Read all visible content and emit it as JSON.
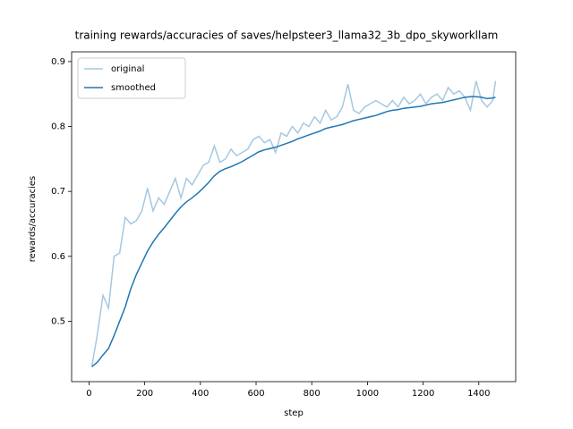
{
  "chart_data": {
    "type": "line",
    "title": "training rewards/accuracies of saves/helpsteer3_llama32_3b_dpo_skyworkllam",
    "xlabel": "step",
    "ylabel": "rewards/accuracies",
    "x": [
      10,
      30,
      50,
      70,
      90,
      110,
      130,
      150,
      170,
      190,
      210,
      230,
      250,
      270,
      290,
      310,
      330,
      350,
      370,
      390,
      410,
      430,
      450,
      470,
      490,
      510,
      530,
      550,
      570,
      590,
      610,
      630,
      650,
      670,
      690,
      710,
      730,
      750,
      770,
      790,
      810,
      830,
      850,
      870,
      890,
      910,
      930,
      950,
      970,
      990,
      1010,
      1030,
      1050,
      1070,
      1090,
      1110,
      1130,
      1150,
      1170,
      1190,
      1210,
      1230,
      1250,
      1270,
      1290,
      1310,
      1330,
      1350,
      1370,
      1390,
      1410,
      1430,
      1450,
      1460
    ],
    "series": [
      {
        "name": "original",
        "color": "#a5c8e1",
        "values": [
          0.43,
          0.48,
          0.54,
          0.52,
          0.6,
          0.605,
          0.66,
          0.65,
          0.655,
          0.67,
          0.705,
          0.67,
          0.69,
          0.68,
          0.7,
          0.72,
          0.69,
          0.72,
          0.71,
          0.725,
          0.74,
          0.745,
          0.77,
          0.745,
          0.75,
          0.765,
          0.755,
          0.76,
          0.765,
          0.78,
          0.785,
          0.775,
          0.78,
          0.76,
          0.79,
          0.785,
          0.8,
          0.79,
          0.805,
          0.8,
          0.815,
          0.805,
          0.825,
          0.81,
          0.815,
          0.83,
          0.865,
          0.825,
          0.82,
          0.83,
          0.835,
          0.84,
          0.835,
          0.83,
          0.84,
          0.83,
          0.845,
          0.835,
          0.84,
          0.85,
          0.835,
          0.845,
          0.85,
          0.84,
          0.86,
          0.85,
          0.855,
          0.845,
          0.825,
          0.87,
          0.84,
          0.83,
          0.84,
          0.87
        ]
      },
      {
        "name": "smoothed",
        "color": "#1f77b4",
        "values": [
          0.43,
          0.437,
          0.448,
          0.458,
          0.478,
          0.5,
          0.522,
          0.55,
          0.572,
          0.59,
          0.608,
          0.622,
          0.634,
          0.644,
          0.655,
          0.666,
          0.676,
          0.684,
          0.69,
          0.697,
          0.705,
          0.714,
          0.724,
          0.731,
          0.735,
          0.738,
          0.742,
          0.746,
          0.751,
          0.756,
          0.761,
          0.764,
          0.766,
          0.768,
          0.771,
          0.774,
          0.777,
          0.781,
          0.784,
          0.787,
          0.79,
          0.793,
          0.797,
          0.799,
          0.801,
          0.803,
          0.806,
          0.809,
          0.811,
          0.813,
          0.815,
          0.817,
          0.82,
          0.823,
          0.825,
          0.826,
          0.828,
          0.829,
          0.83,
          0.831,
          0.833,
          0.835,
          0.836,
          0.837,
          0.839,
          0.841,
          0.843,
          0.845,
          0.846,
          0.846,
          0.845,
          0.843,
          0.844,
          0.845
        ]
      }
    ],
    "xlim": [
      -62.5,
      1532.5
    ],
    "xticks": [
      0,
      200,
      400,
      600,
      800,
      1000,
      1200,
      1400
    ],
    "ylim": [
      0.407,
      0.915
    ],
    "yticks": [
      0.5,
      0.6,
      0.7,
      0.8,
      0.9
    ],
    "legend": "upper left",
    "grid": false
  }
}
